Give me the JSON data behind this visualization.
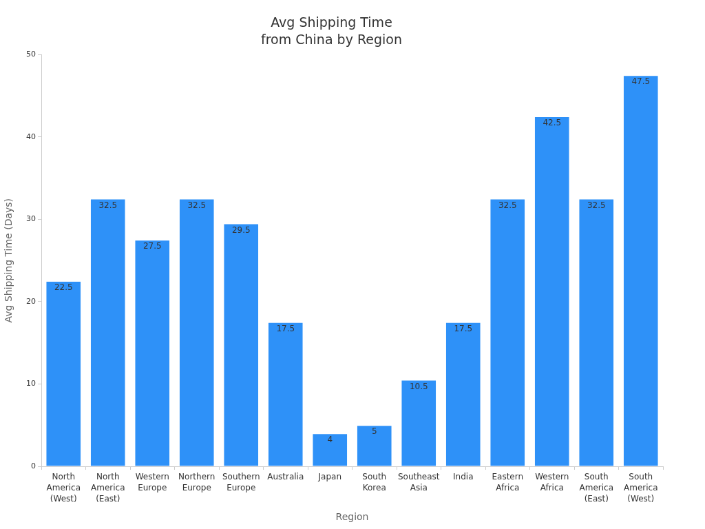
{
  "chart_data": {
    "type": "bar",
    "title": "Avg Shipping Time\nfrom China by Region",
    "xlabel": "Region",
    "ylabel": "Avg Shipping Time (Days)",
    "categories": [
      "North America (West)",
      "North America (East)",
      "Western Europe",
      "Northern Europe",
      "Southern Europe",
      "Australia",
      "Japan",
      "South Korea",
      "Southeast Asia",
      "India",
      "Eastern Africa",
      "Western Africa",
      "South America (East)",
      "South America (West)"
    ],
    "values": [
      22.5,
      32.5,
      27.5,
      32.5,
      29.5,
      17.5,
      4,
      5,
      10.5,
      17.5,
      32.5,
      42.5,
      32.5,
      47.5
    ],
    "color": "#2e91f8",
    "ylim": [
      0,
      50
    ],
    "yticks": [
      0,
      10,
      20,
      30,
      40,
      50
    ],
    "grid": false,
    "legend": false,
    "data_labels": true
  }
}
